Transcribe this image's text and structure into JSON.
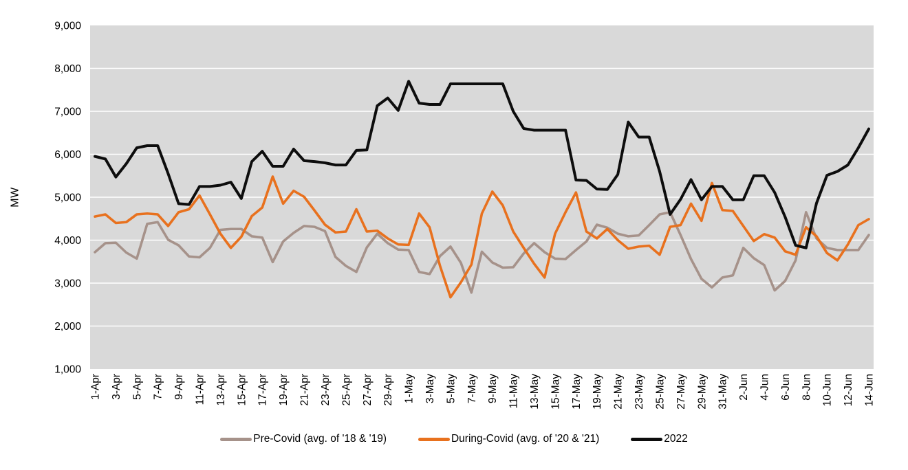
{
  "chart_data": {
    "type": "line",
    "title": "",
    "xlabel": "",
    "ylabel": "MW",
    "ylim": [
      1000,
      9000
    ],
    "ytick_step": 1000,
    "ytick_labels": [
      "1,000",
      "2,000",
      "3,000",
      "4,000",
      "5,000",
      "6,000",
      "7,000",
      "8,000",
      "9,000"
    ],
    "xtick_shown_every": 2,
    "grid": "horizontal",
    "plot_bg_color": "#D9D9D9",
    "gridline_color": "#FFFFFF",
    "legend_position": "bottom-center",
    "x": [
      "1-Apr",
      "2-Apr",
      "3-Apr",
      "4-Apr",
      "5-Apr",
      "6-Apr",
      "7-Apr",
      "8-Apr",
      "9-Apr",
      "10-Apr",
      "11-Apr",
      "12-Apr",
      "13-Apr",
      "14-Apr",
      "15-Apr",
      "16-Apr",
      "17-Apr",
      "18-Apr",
      "19-Apr",
      "20-Apr",
      "21-Apr",
      "22-Apr",
      "23-Apr",
      "24-Apr",
      "25-Apr",
      "26-Apr",
      "27-Apr",
      "28-Apr",
      "29-Apr",
      "30-Apr",
      "1-May",
      "2-May",
      "3-May",
      "4-May",
      "5-May",
      "6-May",
      "7-May",
      "8-May",
      "9-May",
      "10-May",
      "11-May",
      "12-May",
      "13-May",
      "14-May",
      "15-May",
      "16-May",
      "17-May",
      "18-May",
      "19-May",
      "20-May",
      "21-May",
      "22-May",
      "23-May",
      "24-May",
      "25-May",
      "26-May",
      "27-May",
      "28-May",
      "29-May",
      "30-May",
      "31-May",
      "1-Jun",
      "2-Jun",
      "3-Jun",
      "4-Jun",
      "5-Jun",
      "6-Jun",
      "7-Jun",
      "8-Jun",
      "9-Jun",
      "10-Jun",
      "11-Jun",
      "12-Jun",
      "13-Jun",
      "14-Jun"
    ],
    "series": [
      {
        "name": "Pre-Covid (avg. of '18 & '19)",
        "color": "#A6928A",
        "stroke_width": 3.6,
        "values": [
          3720,
          3930,
          3940,
          3710,
          3570,
          4380,
          4420,
          4010,
          3880,
          3620,
          3600,
          3820,
          4240,
          4260,
          4260,
          4090,
          4060,
          3490,
          3970,
          4170,
          4330,
          4310,
          4210,
          3610,
          3400,
          3260,
          3830,
          4150,
          3930,
          3780,
          3770,
          3260,
          3210,
          3630,
          3850,
          3470,
          2780,
          3730,
          3480,
          3360,
          3370,
          3690,
          3930,
          3720,
          3570,
          3560,
          3770,
          3970,
          4360,
          4290,
          4150,
          4090,
          4110,
          4350,
          4600,
          4650,
          4120,
          3560,
          3100,
          2900,
          3130,
          3180,
          3820,
          3580,
          3420,
          2830,
          3050,
          3530,
          4650,
          4040,
          3820,
          3770,
          3770,
          3770,
          4120
        ]
      },
      {
        "name": "During-Covid (avg. of '20 & '21)",
        "color": "#E8711E",
        "stroke_width": 3.6,
        "values": [
          4550,
          4600,
          4400,
          4420,
          4600,
          4620,
          4600,
          4330,
          4650,
          4720,
          5040,
          4600,
          4150,
          3820,
          4080,
          4560,
          4760,
          5480,
          4850,
          5150,
          5010,
          4690,
          4360,
          4180,
          4200,
          4720,
          4200,
          4220,
          4040,
          3900,
          3890,
          4620,
          4300,
          3400,
          2670,
          3020,
          3430,
          4620,
          5130,
          4810,
          4200,
          3820,
          3450,
          3130,
          4150,
          4650,
          5110,
          4200,
          4040,
          4260,
          4000,
          3800,
          3850,
          3870,
          3660,
          4310,
          4350,
          4850,
          4450,
          5330,
          4700,
          4680,
          4330,
          3980,
          4140,
          4060,
          3740,
          3660,
          4300,
          4090,
          3700,
          3530,
          3900,
          4350,
          4490
        ]
      },
      {
        "name": "2022",
        "color": "#0D0D0D",
        "stroke_width": 4,
        "values": [
          5950,
          5890,
          5470,
          5780,
          6150,
          6200,
          6200,
          5550,
          4850,
          4830,
          5250,
          5250,
          5280,
          5350,
          4970,
          5830,
          6070,
          5720,
          5720,
          6120,
          5850,
          5830,
          5800,
          5750,
          5750,
          6090,
          6100,
          7130,
          7310,
          7020,
          7700,
          7190,
          7160,
          7160,
          7640,
          7640,
          7640,
          7640,
          7640,
          7640,
          7000,
          6600,
          6560,
          6560,
          6560,
          6560,
          5400,
          5390,
          5190,
          5180,
          5530,
          6750,
          6400,
          6400,
          5600,
          4600,
          4950,
          5410,
          4940,
          5250,
          5250,
          4940,
          4940,
          5500,
          5500,
          5110,
          4540,
          3880,
          3820,
          4860,
          5510,
          5600,
          5750,
          6150,
          6590
        ]
      }
    ]
  }
}
